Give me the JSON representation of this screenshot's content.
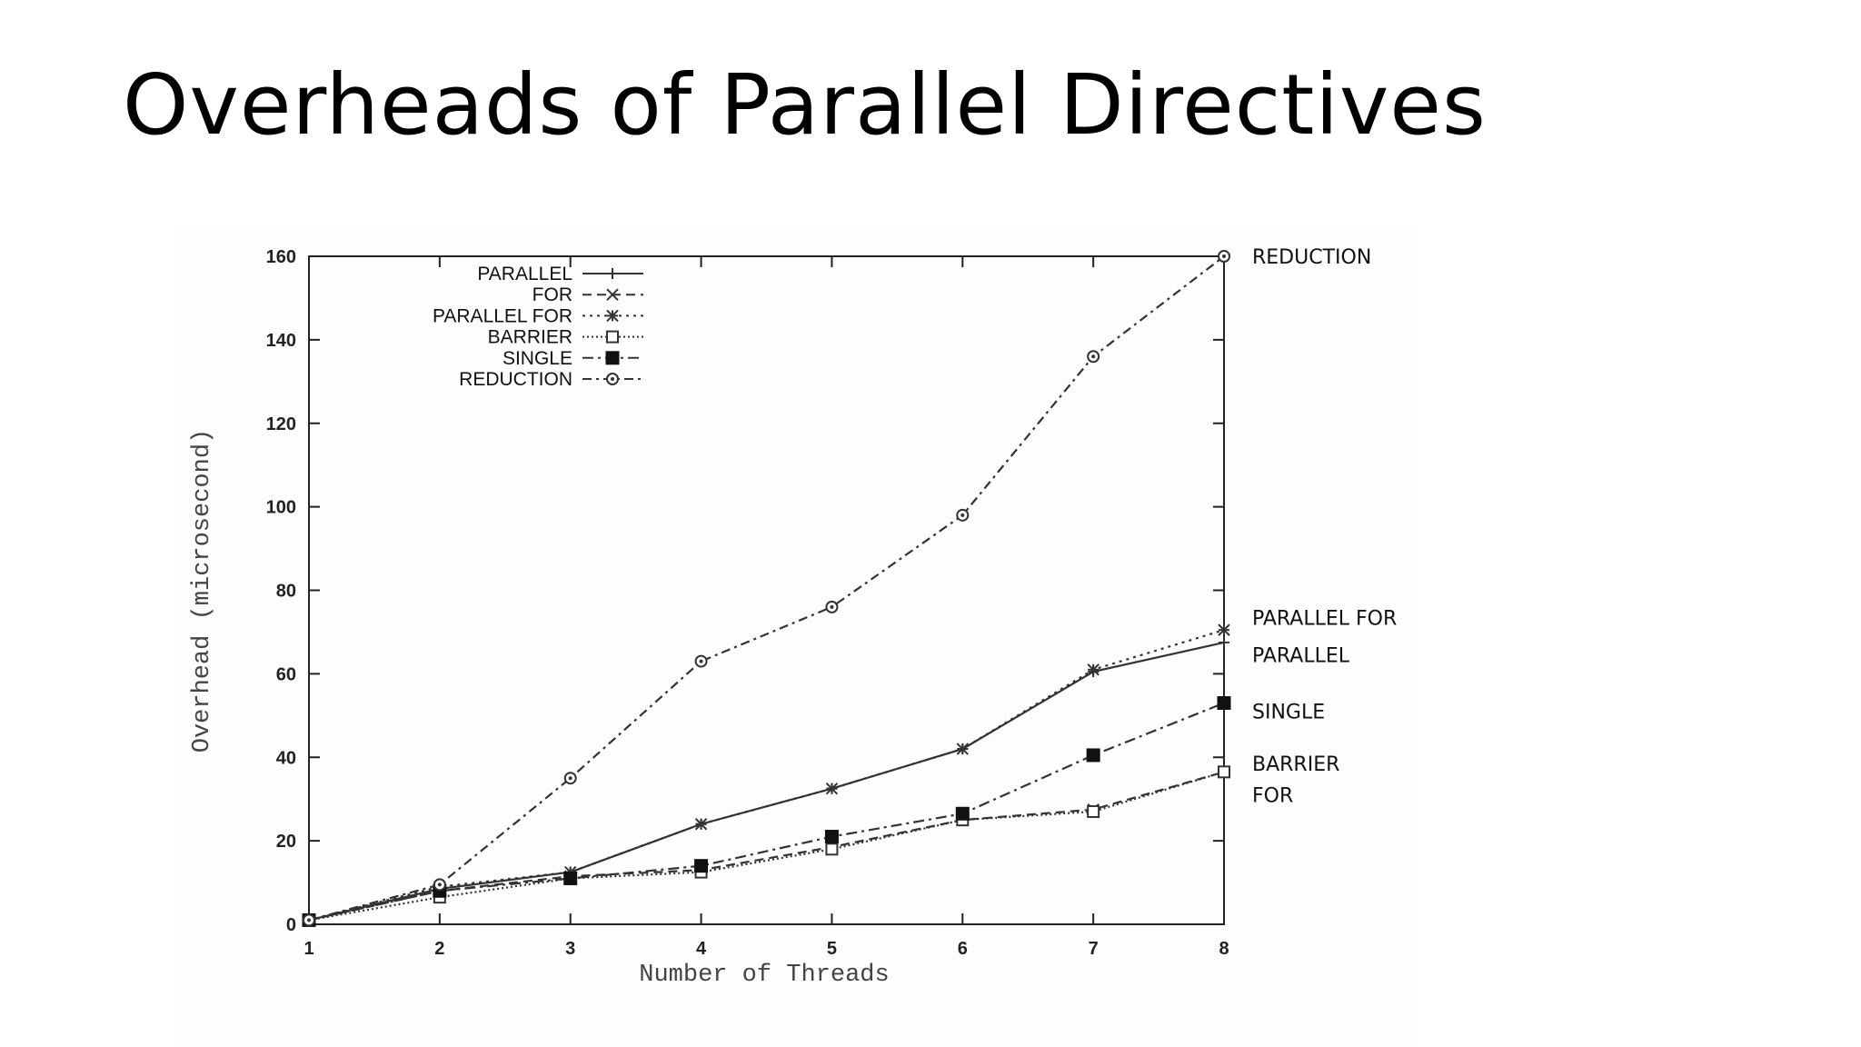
{
  "slide": {
    "title": "Overheads of Parallel Directives"
  },
  "chart_data": {
    "type": "line",
    "title": "",
    "xlabel": "Number of Threads",
    "ylabel": "Overhead (microsecond)",
    "x": [
      1,
      2,
      3,
      4,
      5,
      6,
      7,
      8
    ],
    "xlim": [
      1,
      8
    ],
    "ylim": [
      0,
      160
    ],
    "yticks": [
      0,
      20,
      40,
      60,
      80,
      100,
      120,
      140,
      160
    ],
    "grid": false,
    "legend_position": "top-left",
    "series": [
      {
        "name": "PARALLEL",
        "values": [
          1,
          8.5,
          12.5,
          24,
          32.5,
          42,
          60.5,
          67.5
        ],
        "dash": "",
        "marker": "plus"
      },
      {
        "name": "FOR",
        "values": [
          1,
          8,
          11.5,
          13,
          18.5,
          25,
          27.5,
          36.5
        ],
        "dash": "10 6",
        "marker": "cross"
      },
      {
        "name": "PARALLEL FOR",
        "values": [
          1,
          9,
          12.5,
          24,
          32.5,
          42,
          61,
          70.5
        ],
        "dash": "3 5",
        "marker": "star"
      },
      {
        "name": "BARRIER",
        "values": [
          1,
          6.5,
          11,
          12.5,
          18,
          25,
          27,
          36.5
        ],
        "dash": "2 3",
        "marker": "open-square"
      },
      {
        "name": "SINGLE",
        "values": [
          1,
          8,
          11,
          14,
          21,
          26.5,
          40.5,
          53
        ],
        "dash": "12 5 3 5",
        "marker": "filled-square"
      },
      {
        "name": "REDUCTION",
        "values": [
          1,
          9.5,
          35,
          63,
          76,
          98,
          136,
          160
        ],
        "dash": "10 5 3 5",
        "marker": "open-circle"
      }
    ],
    "side_labels": [
      {
        "text": "REDUCTION",
        "value": 160
      },
      {
        "text": "PARALLEL FOR",
        "value": 73.5
      },
      {
        "text": "PARALLEL",
        "value": 64.5
      },
      {
        "text": "SINGLE",
        "value": 51
      },
      {
        "text": "BARRIER",
        "value": 38.5
      },
      {
        "text": "FOR",
        "value": 31
      }
    ]
  }
}
